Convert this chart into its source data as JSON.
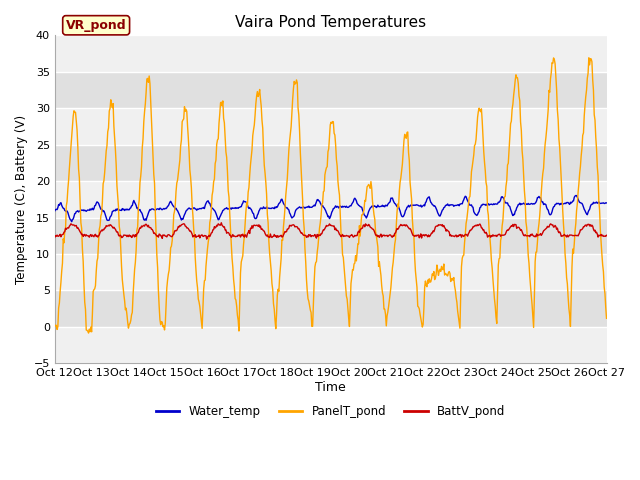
{
  "title": "Vaira Pond Temperatures",
  "xlabel": "Time",
  "ylabel": "Temperature (C), Battery (V)",
  "ylim": [
    -5,
    40
  ],
  "xlim": [
    0,
    360
  ],
  "xtick_labels": [
    "Oct 12",
    "Oct 13",
    "Oct 14",
    "Oct 15",
    "Oct 16",
    "Oct 17",
    "Oct 18",
    "Oct 19",
    "Oct 20",
    "Oct 21",
    "Oct 22",
    "Oct 23",
    "Oct 24",
    "Oct 25",
    "Oct 26",
    "Oct 27"
  ],
  "yticks": [
    -5,
    0,
    5,
    10,
    15,
    20,
    25,
    30,
    35,
    40
  ],
  "legend_label": "VR_pond",
  "legend_items": [
    "Water_temp",
    "PanelT_pond",
    "BattV_pond"
  ],
  "water_color": "#0000cc",
  "panel_color": "#ffa500",
  "batt_color": "#cc0000",
  "plot_bg_color": "#f0f0f0",
  "fig_bg_color": "#ffffff",
  "band_light": "#f0f0f0",
  "band_dark": "#e0e0e0",
  "vr_pond_bg": "#ffffcc",
  "vr_pond_border": "#8b0000",
  "vr_pond_color": "#8b0000"
}
